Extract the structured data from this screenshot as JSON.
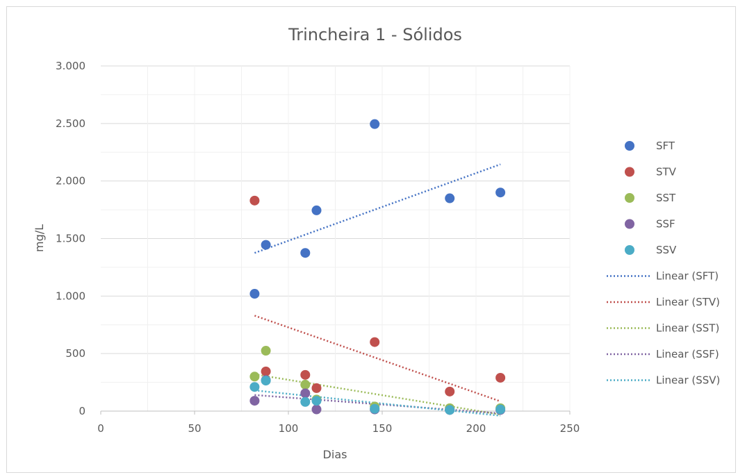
{
  "chart_data": {
    "type": "scatter",
    "title": "Trincheira 1 - Sólidos",
    "xlabel": "Dias",
    "ylabel": "mg/L",
    "xlim": [
      0,
      250
    ],
    "ylim": [
      0,
      3000
    ],
    "x_ticks": [
      0,
      50,
      100,
      150,
      200,
      250
    ],
    "y_ticks": [
      0,
      500,
      1000,
      1500,
      2000,
      2500,
      3000
    ],
    "x_tick_labels": [
      "0",
      "50",
      "100",
      "150",
      "200",
      "250"
    ],
    "y_tick_labels": [
      "0",
      "500",
      "1.000",
      "1.500",
      "2.000",
      "2.500",
      "3.000"
    ],
    "grid": true,
    "legend_position": "right",
    "series": [
      {
        "name": "SFT",
        "color": "#4472c4",
        "points": [
          [
            82,
            1020
          ],
          [
            88,
            1445
          ],
          [
            109,
            1375
          ],
          [
            115,
            1745
          ],
          [
            146,
            2495
          ],
          [
            186,
            1850
          ],
          [
            213,
            1900
          ]
        ],
        "trend": {
          "name": "Linear (SFT)",
          "x": [
            82,
            213
          ],
          "y": [
            1375,
            2145
          ]
        }
      },
      {
        "name": "STV",
        "color": "#c0504d",
        "points": [
          [
            82,
            1830
          ],
          [
            88,
            345
          ],
          [
            109,
            315
          ],
          [
            115,
            200
          ],
          [
            146,
            600
          ],
          [
            186,
            170
          ],
          [
            213,
            290
          ]
        ],
        "trend": {
          "name": "Linear (STV)",
          "x": [
            82,
            213
          ],
          "y": [
            830,
            85
          ]
        }
      },
      {
        "name": "SST",
        "color": "#9bbb59",
        "points": [
          [
            82,
            300
          ],
          [
            88,
            525
          ],
          [
            109,
            230
          ],
          [
            115,
            100
          ],
          [
            146,
            40
          ],
          [
            186,
            25
          ],
          [
            213,
            25
          ]
        ],
        "trend": {
          "name": "Linear (SST)",
          "x": [
            82,
            213
          ],
          "y": [
            320,
            -30
          ]
        }
      },
      {
        "name": "SSF",
        "color": "#8064a2",
        "points": [
          [
            82,
            90
          ],
          [
            88,
            270
          ],
          [
            109,
            155
          ],
          [
            115,
            15
          ],
          [
            146,
            15
          ],
          [
            186,
            10
          ],
          [
            213,
            10
          ]
        ],
        "trend": {
          "name": "Linear (SSF)",
          "x": [
            82,
            213
          ],
          "y": [
            140,
            -20
          ]
        }
      },
      {
        "name": "SSV",
        "color": "#4bacc6",
        "points": [
          [
            82,
            210
          ],
          [
            88,
            265
          ],
          [
            109,
            80
          ],
          [
            115,
            90
          ],
          [
            146,
            20
          ],
          [
            186,
            10
          ],
          [
            213,
            15
          ]
        ],
        "trend": {
          "name": "Linear (SSV)",
          "x": [
            82,
            213
          ],
          "y": [
            180,
            -40
          ]
        }
      }
    ]
  }
}
